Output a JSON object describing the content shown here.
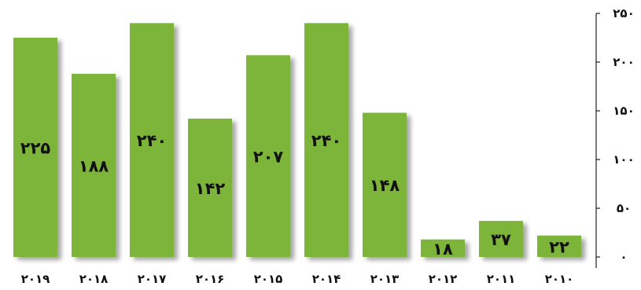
{
  "chart_data": {
    "type": "bar",
    "direction": "rtl",
    "categories": [
      "٢٠١٩",
      "٢٠١٨",
      "٢٠١٧",
      "٢٠١۶",
      "٢٠١۵",
      "٢٠١۴",
      "٢٠١٣",
      "٢٠١٢",
      "٢٠١١",
      "٢٠١٠"
    ],
    "values": [
      225,
      188,
      240,
      142,
      207,
      240,
      148,
      18,
      37,
      22
    ],
    "value_labels": [
      "٢٢۵",
      "١٨٨",
      "٢۴٠",
      "١۴٢",
      "٢٠٧",
      "٢۴٠",
      "١۴٨",
      "١٨",
      "٣٧",
      "٢٢"
    ],
    "ylim": [
      0,
      250
    ],
    "y_ticks": [
      0,
      50,
      100,
      150,
      200,
      250
    ],
    "y_tick_labels": [
      "٠",
      "۵٠",
      "١٠٠",
      "١۵٠",
      "٢٠٠",
      "٢۵٠"
    ],
    "y_axis_side": "right",
    "grid": false,
    "legend": "none",
    "bar_color": "#7db43a",
    "title": "",
    "xlabel": "",
    "ylabel": ""
  }
}
